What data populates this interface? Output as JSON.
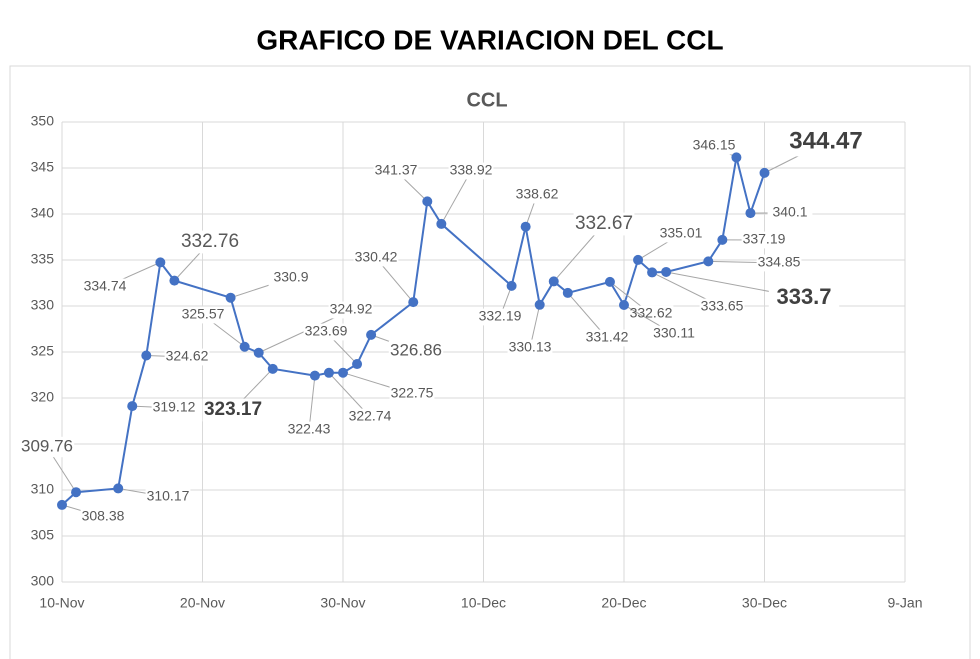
{
  "page_title": "GRAFICO DE VARIACION DEL CCL",
  "chart_data": {
    "type": "line",
    "title": "CCL",
    "x": [
      "10-Nov",
      "11-Nov",
      "14-Nov",
      "15-Nov",
      "16-Nov",
      "17-Nov",
      "18-Nov",
      "22-Nov",
      "23-Nov",
      "24-Nov",
      "25-Nov",
      "28-Nov",
      "29-Nov",
      "30-Nov",
      "1-Dec",
      "2-Dec",
      "5-Dec",
      "6-Dec",
      "7-Dec",
      "12-Dec",
      "13-Dec",
      "14-Dec",
      "15-Dec",
      "16-Dec",
      "19-Dec",
      "20-Dec",
      "21-Dec",
      "22-Dec",
      "23-Dec",
      "26-Dec",
      "27-Dec",
      "28-Dec",
      "29-Dec",
      "30-Dec"
    ],
    "series": [
      {
        "name": "CCL",
        "color": "#4472c4",
        "values": [
          308.38,
          309.76,
          310.17,
          319.12,
          324.62,
          334.74,
          332.76,
          330.9,
          325.57,
          324.92,
          323.17,
          322.43,
          322.74,
          322.75,
          323.69,
          326.86,
          330.42,
          341.37,
          338.92,
          332.19,
          338.62,
          330.13,
          332.67,
          331.42,
          332.62,
          330.11,
          335.01,
          333.65,
          333.7,
          334.85,
          337.19,
          346.15,
          340.1,
          344.47
        ]
      }
    ],
    "xlim": [
      "10-Nov",
      "9-Jan"
    ],
    "xticks": [
      "10-Nov",
      "20-Nov",
      "30-Nov",
      "10-Dec",
      "20-Dec",
      "30-Dec",
      "9-Jan"
    ],
    "ylim": [
      300,
      350
    ],
    "yticks": [
      300,
      305,
      310,
      315,
      320,
      325,
      330,
      335,
      340,
      345,
      350
    ],
    "grid": true
  }
}
